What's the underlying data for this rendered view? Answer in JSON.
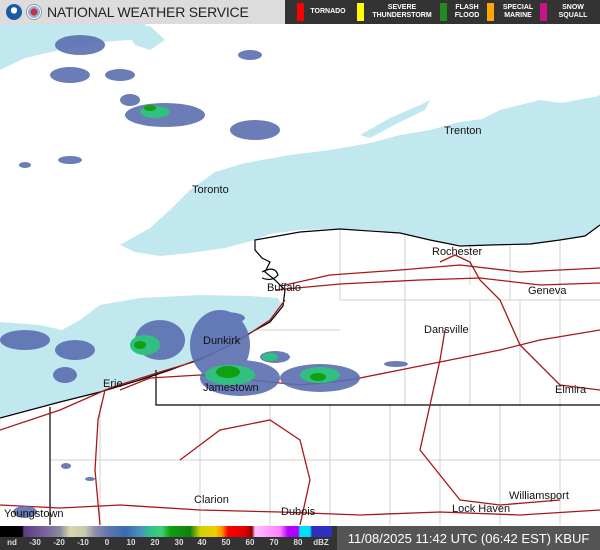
{
  "header": {
    "title": "NATIONAL WEATHER SERVICE",
    "logos": [
      "noaa-logo",
      "nws-logo"
    ],
    "warnings": [
      {
        "label_line1": "TORNADO",
        "label_line2": "",
        "color": "#ff0000"
      },
      {
        "label_line1": "SEVERE",
        "label_line2": "THUNDERSTORM",
        "color": "#ffff00"
      },
      {
        "label_line1": "FLASH",
        "label_line2": "FLOOD",
        "color": "#228b22"
      },
      {
        "label_line1": "SPECIAL",
        "label_line2": "MARINE",
        "color": "#ffa500"
      },
      {
        "label_line1": "SNOW",
        "label_line2": "SQUALL",
        "color": "#c71585"
      }
    ]
  },
  "map": {
    "colors": {
      "water": "#c2e8ef",
      "land": "#ffffff",
      "roads": "#a81818",
      "borders": "#000000",
      "counties": "#d0d0d0"
    },
    "cities": [
      "Trenton",
      "Toronto",
      "Rochester",
      "Buffalo",
      "Geneva",
      "Dansville",
      "Dunkirk",
      "Jamestown",
      "Erie",
      "Elmira",
      "Youngstown",
      "Clarion",
      "Dubois",
      "Lock Haven",
      "Williamsport"
    ]
  },
  "legend": {
    "ticks": [
      "nd",
      "-30",
      "-20",
      "-10",
      "0",
      "10",
      "20",
      "30",
      "40",
      "50",
      "60",
      "70",
      "80",
      "dBZ"
    ]
  },
  "timestamp": "11/08/2025 11:42 UTC (06:42 EST)  KBUF"
}
